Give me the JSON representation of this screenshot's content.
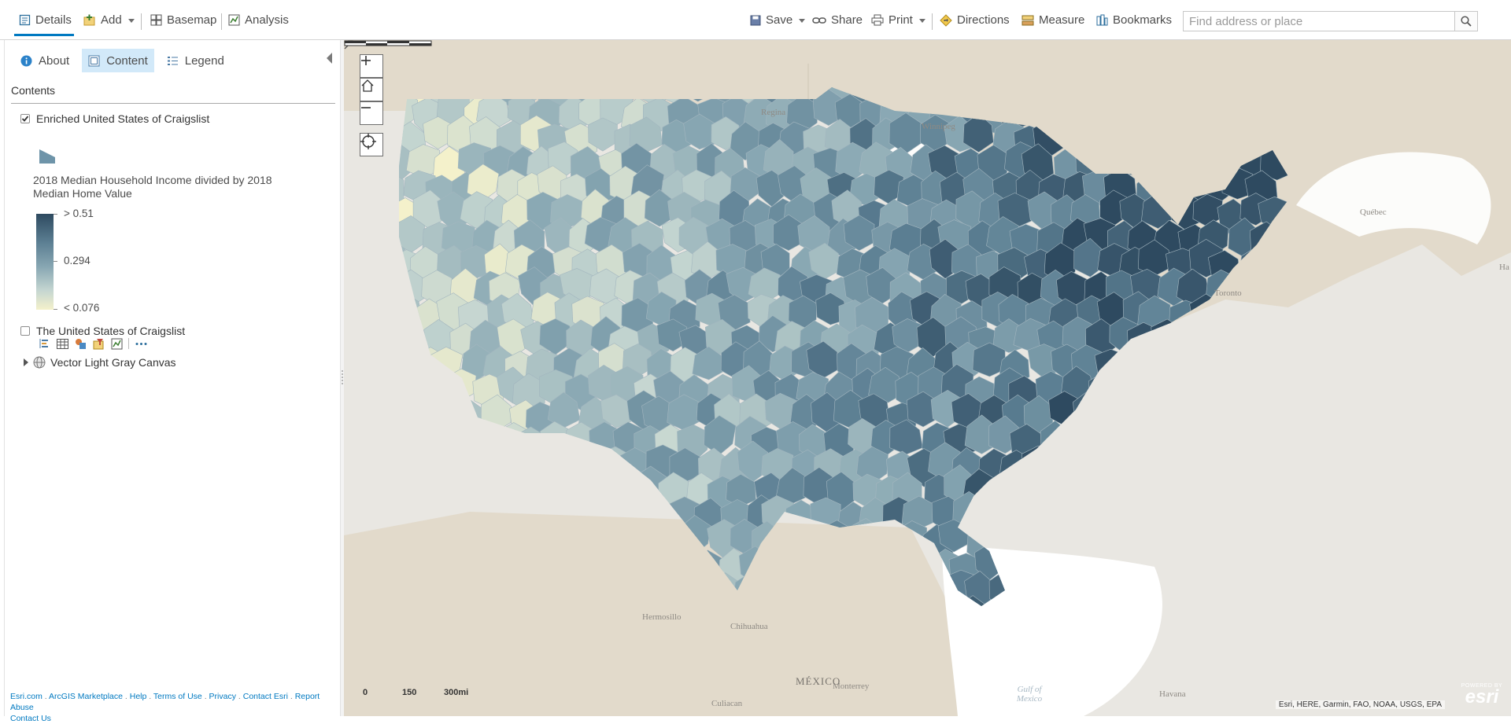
{
  "toolbar": {
    "details": "Details",
    "add": "Add",
    "basemap": "Basemap",
    "analysis": "Analysis",
    "save": "Save",
    "share": "Share",
    "print": "Print",
    "directions": "Directions",
    "measure": "Measure",
    "bookmarks": "Bookmarks",
    "search_placeholder": "Find address or place"
  },
  "panel": {
    "tabs": {
      "about": "About",
      "content": "Content",
      "legend": "Legend"
    },
    "active_tab": "Content",
    "contents_heading": "Contents",
    "layers": [
      {
        "name": "Enriched United States of Craigslist",
        "checked": true
      },
      {
        "name": "The United States of Craigslist",
        "checked": false
      }
    ],
    "legend": {
      "title": "2018 Median Household Income divided by 2018 Median Home Value",
      "max_label": "> 0.51",
      "mid_label": "0.294",
      "min_label": "< 0.076",
      "ramp_colors": [
        "#2e4a60",
        "#87a6b2",
        "#f4f1cb"
      ]
    },
    "basemap_layer": "Vector Light Gray Canvas",
    "footer_links": [
      "Esri.com",
      "ArcGIS Marketplace",
      "Help",
      "Terms of Use",
      "Privacy",
      "Contact Esri",
      "Report Abuse",
      "Contact Us"
    ]
  },
  "map": {
    "labels": {
      "regina": "Regina",
      "winnipeg": "Winnipeg",
      "quebec": "Québec",
      "toronto": "Toronto",
      "hermosillo": "Hermosillo",
      "chihuahua": "Chihuahua",
      "monterrey": "Monterrey",
      "culiacan": "Culiacan",
      "mexico": "MÉXICO",
      "havana": "Havana",
      "gulf": "Gulf of Mexico",
      "ha": "Ha"
    },
    "scale": {
      "zero": "0",
      "mid": "150",
      "max": "300mi"
    },
    "attribution": "Esri, HERE, Garmin, FAO, NOAA, USGS, EPA",
    "logo_small": "POWERED BY",
    "logo_big": "esri"
  },
  "colors": {
    "accent": "#0079c1",
    "active_tab_bg": "#d2e9f9",
    "land": "#e9e7e2",
    "water": "#ffffff",
    "canada_mexico": "#e2dacb"
  }
}
